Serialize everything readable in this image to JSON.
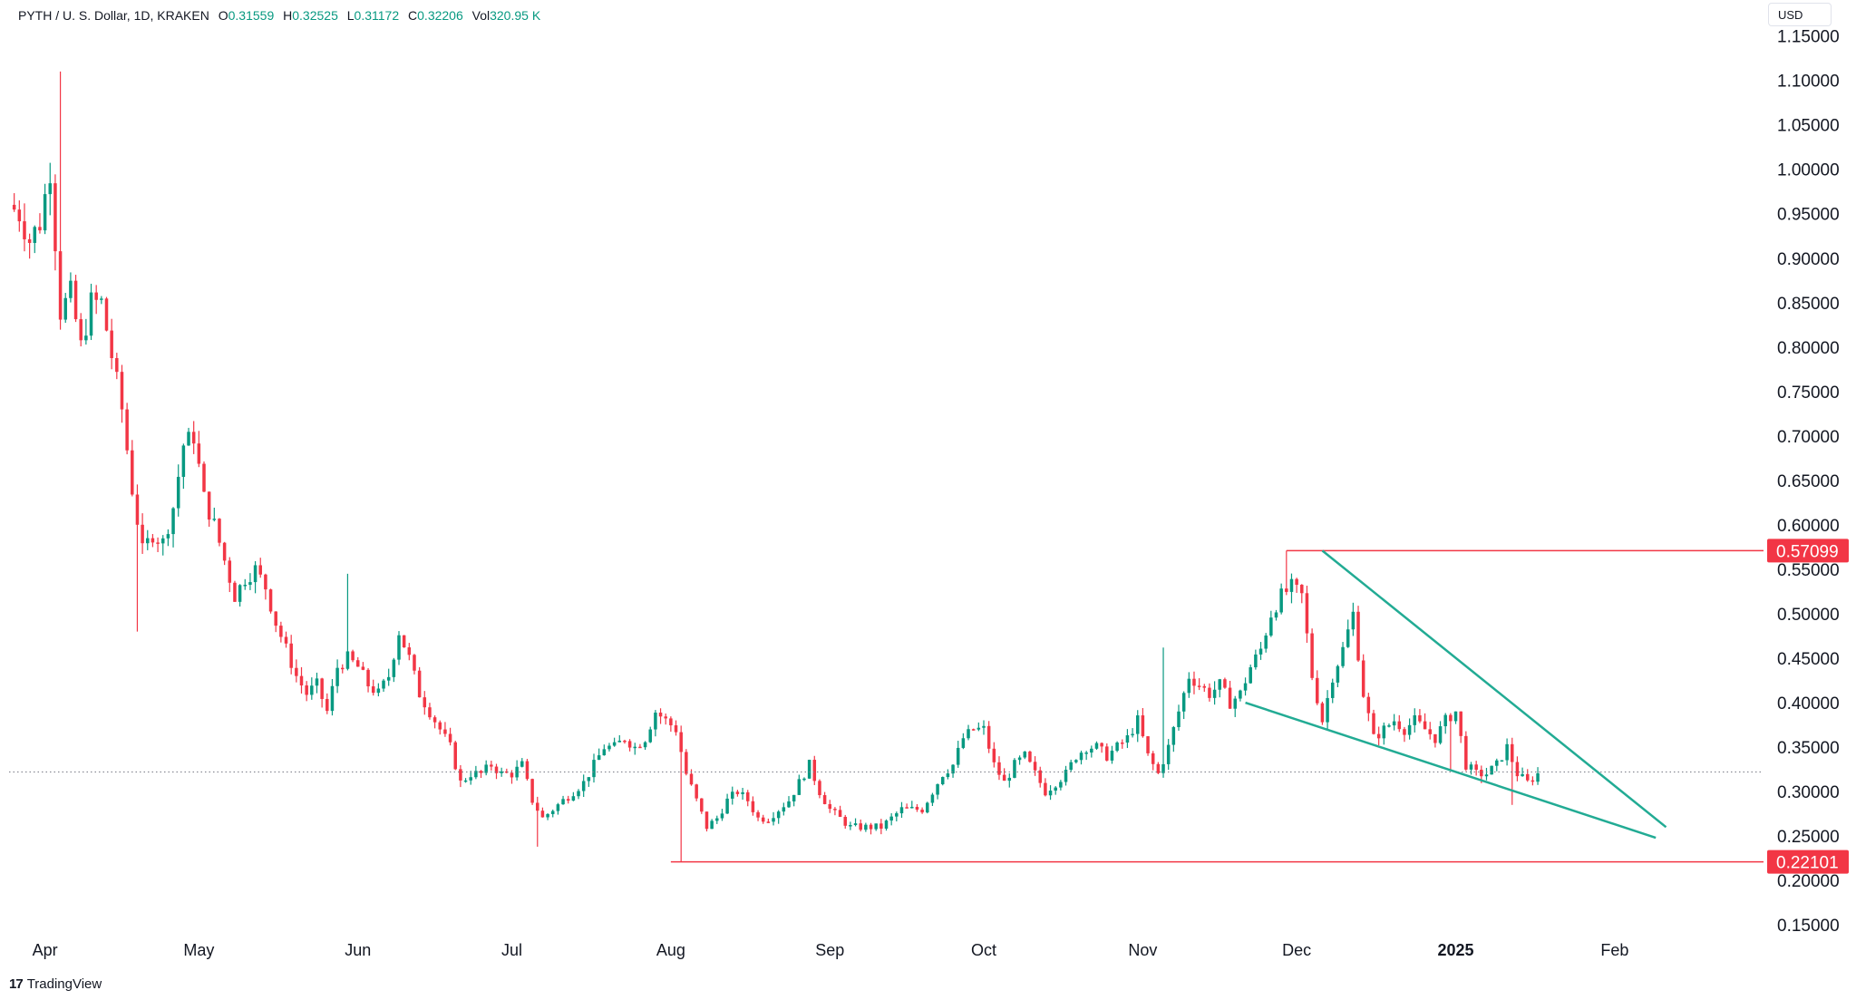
{
  "header": {
    "symbol": "PYTH / U. S. Dollar, 1D, KRAKEN",
    "o_label": "O",
    "o_value": "0.31559",
    "h_label": "H",
    "h_value": "0.32525",
    "l_label": "L",
    "l_value": "0.31172",
    "c_label": "C",
    "c_value": "0.32206",
    "vol_label": "Vol",
    "vol_value": "320.95 K"
  },
  "currency": "USD",
  "footer": {
    "logo": "17",
    "brand": "TradingView"
  },
  "colors": {
    "up": "#089981",
    "down": "#f23645",
    "trend": "#22ab94",
    "level": "#f23645",
    "grid_dot": "#787b86"
  },
  "chart_data": {
    "type": "candlestick",
    "title": "PYTH / U. S. Dollar, 1D, KRAKEN",
    "yaxis": {
      "ticks": [
        "1.15000",
        "1.10000",
        "1.05000",
        "1.00000",
        "0.95000",
        "0.90000",
        "0.85000",
        "0.80000",
        "0.75000",
        "0.70000",
        "0.65000",
        "0.60000",
        "0.55000",
        "0.50000",
        "0.45000",
        "0.40000",
        "0.35000",
        "0.30000",
        "0.25000",
        "0.20000",
        "0.15000"
      ],
      "tick_values": [
        1.15,
        1.1,
        1.05,
        1.0,
        0.95,
        0.9,
        0.85,
        0.8,
        0.75,
        0.7,
        0.65,
        0.6,
        0.55,
        0.5,
        0.45,
        0.4,
        0.35,
        0.3,
        0.25,
        0.2,
        0.15
      ],
      "range": [
        0.14,
        1.17
      ]
    },
    "xaxis": {
      "labels": [
        "Apr",
        "May",
        "Jun",
        "Jul",
        "Aug",
        "Sep",
        "Oct",
        "Nov",
        "Dec",
        "2025",
        "Feb"
      ],
      "label_days": [
        0,
        30,
        61,
        91,
        122,
        153,
        183,
        214,
        244,
        275,
        306
      ],
      "bold": [
        false,
        false,
        false,
        false,
        false,
        false,
        false,
        false,
        false,
        true,
        false
      ],
      "range_days": [
        -7,
        335
      ]
    },
    "price_levels": [
      {
        "label": "0.57099",
        "value": 0.57099,
        "from_day": 242
      },
      {
        "label": "0.22101",
        "value": 0.22101,
        "from_day": 122
      }
    ],
    "current_price": 0.32206,
    "trendlines": [
      {
        "x": [
          249,
          316
        ],
        "y": [
          0.571,
          0.26
        ]
      },
      {
        "x": [
          234,
          314
        ],
        "y": [
          0.4,
          0.248
        ]
      }
    ],
    "anchors": [
      [
        -7,
        0.96
      ],
      [
        -5,
        0.95
      ],
      [
        -3,
        0.92
      ],
      [
        -1,
        0.94
      ],
      [
        1,
        1.0
      ],
      [
        3,
        0.84
      ],
      [
        5,
        0.86
      ],
      [
        7,
        0.8
      ],
      [
        9,
        0.85
      ],
      [
        11,
        0.85
      ],
      [
        13,
        0.79
      ],
      [
        15,
        0.73
      ],
      [
        17,
        0.64
      ],
      [
        19,
        0.57
      ],
      [
        21,
        0.59
      ],
      [
        23,
        0.58
      ],
      [
        25,
        0.62
      ],
      [
        27,
        0.69
      ],
      [
        29,
        0.7
      ],
      [
        31,
        0.63
      ],
      [
        33,
        0.6
      ],
      [
        35,
        0.56
      ],
      [
        37,
        0.52
      ],
      [
        39,
        0.54
      ],
      [
        41,
        0.55
      ],
      [
        43,
        0.53
      ],
      [
        45,
        0.49
      ],
      [
        47,
        0.46
      ],
      [
        49,
        0.43
      ],
      [
        51,
        0.41
      ],
      [
        53,
        0.42
      ],
      [
        55,
        0.39
      ],
      [
        57,
        0.44
      ],
      [
        59,
        0.45
      ],
      [
        61,
        0.44
      ],
      [
        63,
        0.42
      ],
      [
        65,
        0.41
      ],
      [
        67,
        0.43
      ],
      [
        69,
        0.48
      ],
      [
        71,
        0.45
      ],
      [
        73,
        0.41
      ],
      [
        75,
        0.39
      ],
      [
        77,
        0.37
      ],
      [
        79,
        0.35
      ],
      [
        81,
        0.31
      ],
      [
        83,
        0.32
      ],
      [
        85,
        0.32
      ],
      [
        87,
        0.33
      ],
      [
        89,
        0.32
      ],
      [
        91,
        0.32
      ],
      [
        93,
        0.33
      ],
      [
        95,
        0.29
      ],
      [
        97,
        0.27
      ],
      [
        99,
        0.28
      ],
      [
        101,
        0.29
      ],
      [
        103,
        0.3
      ],
      [
        105,
        0.31
      ],
      [
        107,
        0.33
      ],
      [
        109,
        0.35
      ],
      [
        111,
        0.35
      ],
      [
        113,
        0.36
      ],
      [
        115,
        0.35
      ],
      [
        117,
        0.36
      ],
      [
        119,
        0.39
      ],
      [
        121,
        0.38
      ],
      [
        123,
        0.37
      ],
      [
        125,
        0.32
      ],
      [
        127,
        0.29
      ],
      [
        129,
        0.26
      ],
      [
        131,
        0.27
      ],
      [
        133,
        0.29
      ],
      [
        135,
        0.3
      ],
      [
        137,
        0.29
      ],
      [
        139,
        0.27
      ],
      [
        141,
        0.27
      ],
      [
        143,
        0.28
      ],
      [
        145,
        0.29
      ],
      [
        147,
        0.31
      ],
      [
        149,
        0.33
      ],
      [
        151,
        0.3
      ],
      [
        153,
        0.28
      ],
      [
        155,
        0.27
      ],
      [
        157,
        0.26
      ],
      [
        159,
        0.26
      ],
      [
        161,
        0.26
      ],
      [
        163,
        0.26
      ],
      [
        165,
        0.27
      ],
      [
        167,
        0.28
      ],
      [
        169,
        0.28
      ],
      [
        171,
        0.28
      ],
      [
        173,
        0.3
      ],
      [
        175,
        0.32
      ],
      [
        177,
        0.33
      ],
      [
        179,
        0.36
      ],
      [
        181,
        0.37
      ],
      [
        183,
        0.37
      ],
      [
        185,
        0.33
      ],
      [
        187,
        0.31
      ],
      [
        189,
        0.33
      ],
      [
        191,
        0.34
      ],
      [
        193,
        0.32
      ],
      [
        195,
        0.3
      ],
      [
        197,
        0.31
      ],
      [
        199,
        0.32
      ],
      [
        201,
        0.34
      ],
      [
        203,
        0.35
      ],
      [
        205,
        0.35
      ],
      [
        207,
        0.34
      ],
      [
        209,
        0.35
      ],
      [
        211,
        0.36
      ],
      [
        213,
        0.38
      ],
      [
        215,
        0.34
      ],
      [
        217,
        0.32
      ],
      [
        219,
        0.35
      ],
      [
        221,
        0.39
      ],
      [
        223,
        0.43
      ],
      [
        225,
        0.42
      ],
      [
        227,
        0.41
      ],
      [
        229,
        0.42
      ],
      [
        231,
        0.4
      ],
      [
        233,
        0.41
      ],
      [
        235,
        0.44
      ],
      [
        237,
        0.46
      ],
      [
        239,
        0.5
      ],
      [
        241,
        0.52
      ],
      [
        243,
        0.53
      ],
      [
        245,
        0.52
      ],
      [
        247,
        0.43
      ],
      [
        249,
        0.38
      ],
      [
        251,
        0.43
      ],
      [
        253,
        0.46
      ],
      [
        255,
        0.5
      ],
      [
        257,
        0.41
      ],
      [
        259,
        0.36
      ],
      [
        261,
        0.37
      ],
      [
        263,
        0.38
      ],
      [
        265,
        0.37
      ],
      [
        267,
        0.38
      ],
      [
        269,
        0.37
      ],
      [
        271,
        0.36
      ],
      [
        273,
        0.38
      ],
      [
        275,
        0.39
      ],
      [
        277,
        0.33
      ],
      [
        279,
        0.32
      ],
      [
        281,
        0.32
      ],
      [
        283,
        0.33
      ],
      [
        285,
        0.35
      ],
      [
        287,
        0.32
      ],
      [
        289,
        0.31
      ],
      [
        291,
        0.32
      ]
    ]
  }
}
